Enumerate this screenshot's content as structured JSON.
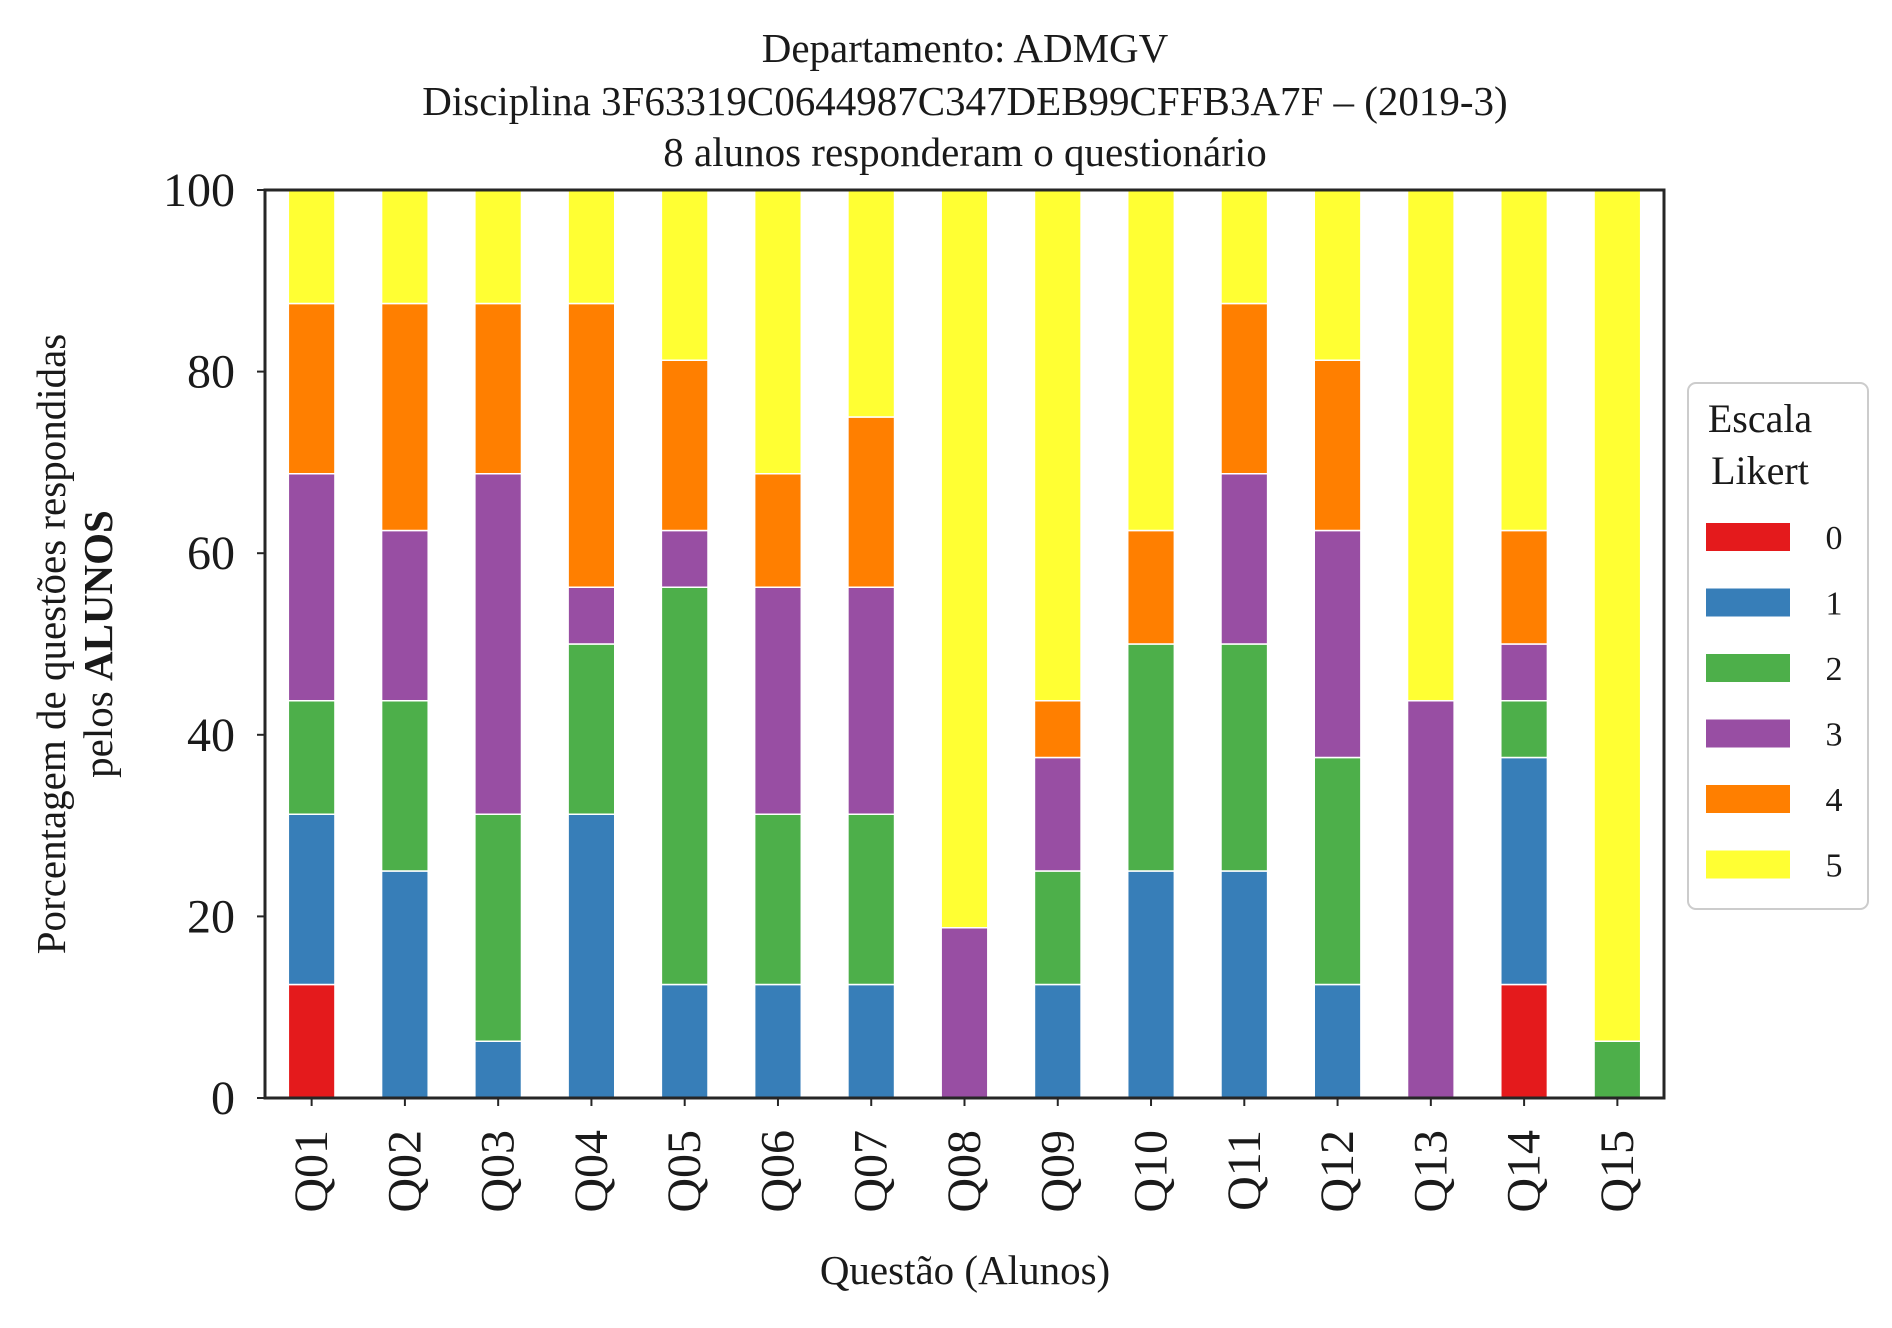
{
  "chart_data": {
    "type": "bar",
    "stacked": true,
    "title_lines": [
      "Departamento: ADMGV",
      "Disciplina 3F63319C0644987C347DEB99CFFB3A7F – (2019-3)",
      "8 alunos responderam o questionário"
    ],
    "xlabel": "Questão (Alunos)",
    "ylabel_line1": "Porcentagem de questões respondidas",
    "ylabel_line2_prefix": "pelos ",
    "ylabel_line2_bold": "ALUNOS",
    "ylim": [
      0,
      100
    ],
    "yticks": [
      "0",
      "20",
      "40",
      "60",
      "80",
      "100"
    ],
    "grid": false,
    "categories": [
      "Q01",
      "Q02",
      "Q03",
      "Q04",
      "Q05",
      "Q06",
      "Q07",
      "Q08",
      "Q09",
      "Q10",
      "Q11",
      "Q12",
      "Q13",
      "Q14",
      "Q15"
    ],
    "legend_title_line1": "Escala",
    "legend_title_line2": "Likert",
    "legend_position": "right",
    "series": [
      {
        "name": "0",
        "color": "#e41a1c",
        "values": [
          12.5,
          0,
          0,
          0,
          0,
          0,
          0,
          0,
          0,
          0,
          0,
          0,
          0,
          12.5,
          0
        ]
      },
      {
        "name": "1",
        "color": "#377eb8",
        "values": [
          18.75,
          25,
          6.25,
          31.25,
          12.5,
          12.5,
          12.5,
          0,
          12.5,
          25,
          25,
          12.5,
          0,
          25,
          0
        ]
      },
      {
        "name": "2",
        "color": "#4daf4a",
        "values": [
          12.5,
          18.75,
          25,
          18.75,
          43.75,
          18.75,
          18.75,
          0,
          12.5,
          25,
          25,
          25,
          0,
          6.25,
          6.25
        ]
      },
      {
        "name": "3",
        "color": "#984ea3",
        "values": [
          25,
          18.75,
          37.5,
          6.25,
          6.25,
          25,
          25,
          18.75,
          12.5,
          0,
          18.75,
          25,
          43.75,
          6.25,
          0
        ]
      },
      {
        "name": "4",
        "color": "#ff7f00",
        "values": [
          18.75,
          25,
          18.75,
          31.25,
          18.75,
          12.5,
          18.75,
          0,
          6.25,
          12.5,
          18.75,
          18.75,
          0,
          12.5,
          0
        ]
      },
      {
        "name": "5",
        "color": "#ffff33",
        "values": [
          12.5,
          12.5,
          12.5,
          12.5,
          18.75,
          31.25,
          25,
          81.25,
          56.25,
          37.5,
          12.5,
          18.75,
          56.25,
          37.5,
          93.75
        ]
      }
    ]
  }
}
